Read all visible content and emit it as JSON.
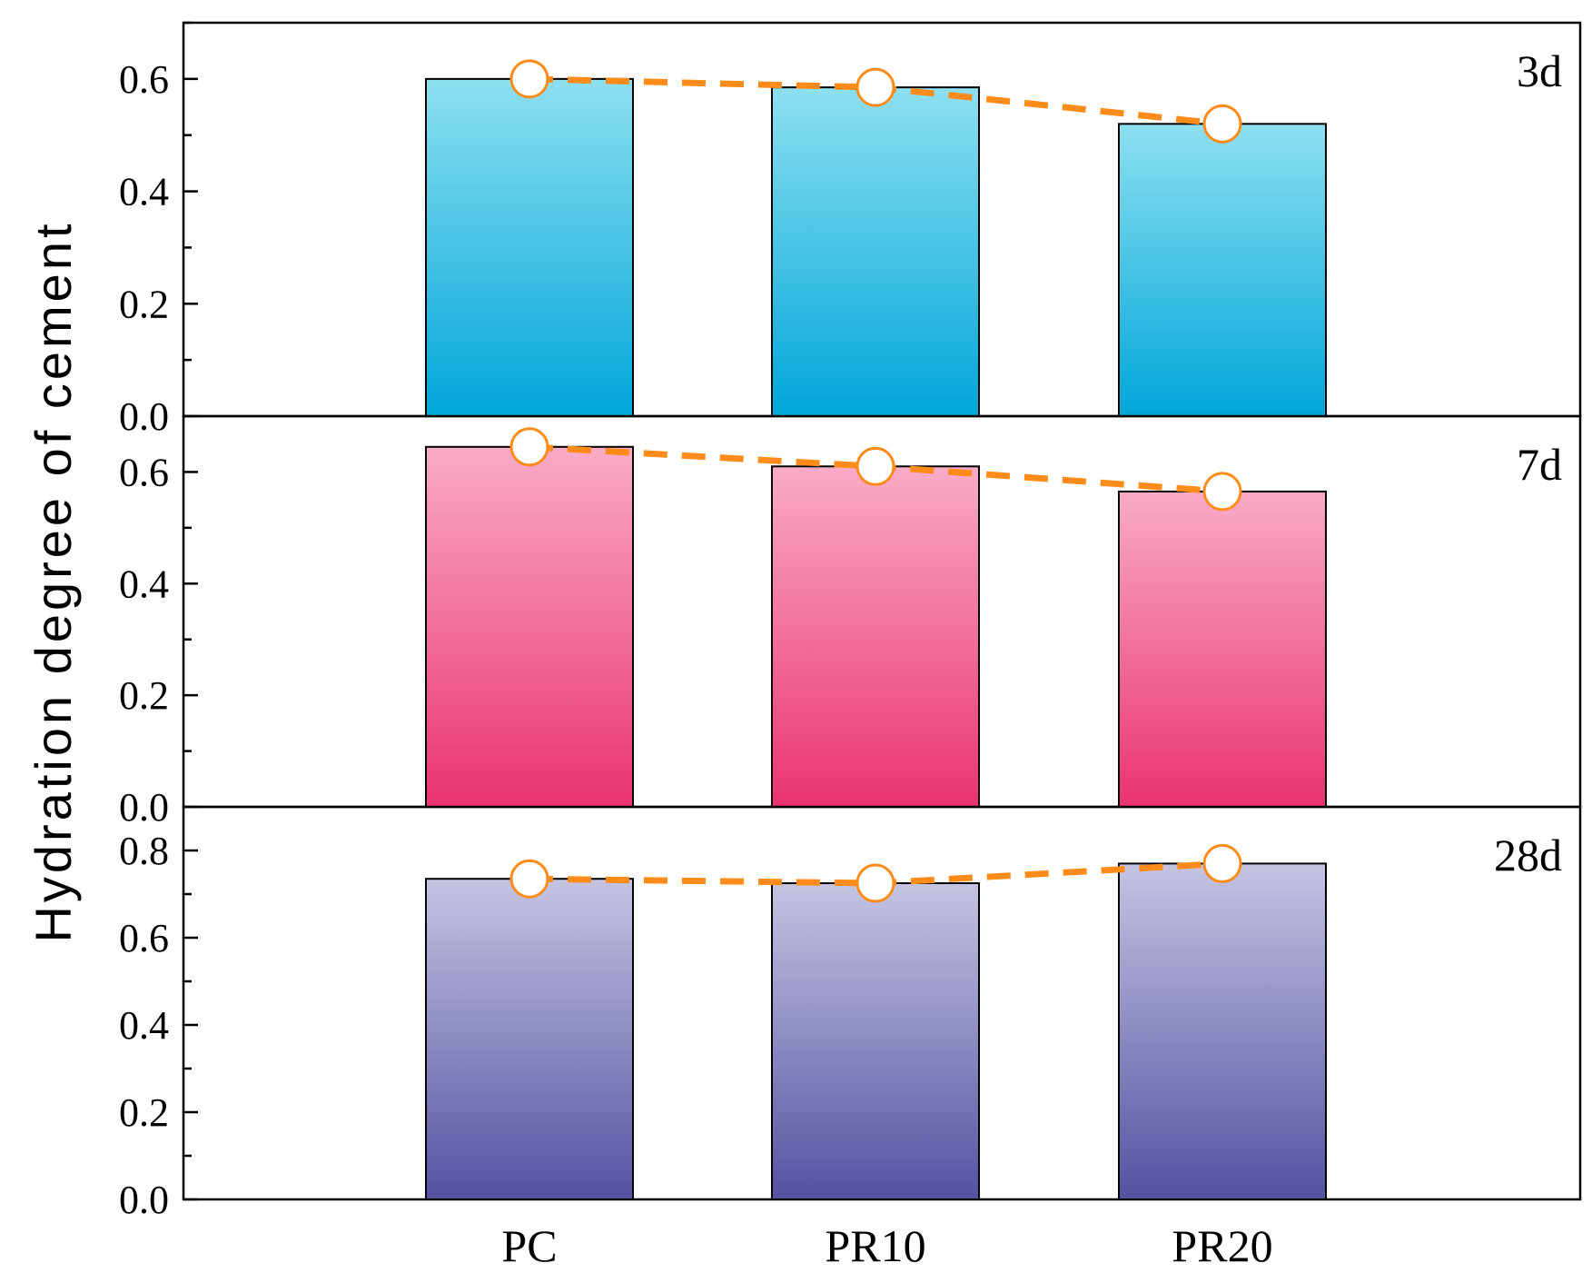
{
  "chart_data": {
    "type": "bar",
    "ylabel": "Hydration degree of cement",
    "categories": [
      "PC",
      "PR10",
      "PR20"
    ],
    "panels": [
      {
        "label": "3d",
        "values": [
          0.6,
          0.585,
          0.52
        ],
        "ylim": [
          0,
          0.7
        ],
        "yticks": [
          0.0,
          0.2,
          0.4,
          0.6
        ],
        "ytick_labels": [
          "0.0",
          "0.2",
          "0.4",
          "0.6"
        ],
        "color_top": "#8ee0f0",
        "color_bottom": "#00a6d9"
      },
      {
        "label": "7d",
        "values": [
          0.645,
          0.61,
          0.565
        ],
        "ylim": [
          0,
          0.7
        ],
        "yticks": [
          0.0,
          0.2,
          0.4,
          0.6
        ],
        "ytick_labels": [
          "0.0",
          "0.2",
          "0.4",
          "0.6"
        ],
        "color_top": "#f9abc8",
        "color_bottom": "#ea3272"
      },
      {
        "label": "28d",
        "values": [
          0.735,
          0.725,
          0.77
        ],
        "ylim": [
          0,
          0.9
        ],
        "yticks": [
          0.0,
          0.2,
          0.4,
          0.6,
          0.8
        ],
        "ytick_labels": [
          "0.0",
          "0.2",
          "0.4",
          "0.6",
          "0.8"
        ],
        "color_top": "#c5c4e2",
        "color_bottom": "#5452a1"
      }
    ],
    "trend_line_color": "#ff8c1a",
    "marker_fill": "#ffffff",
    "marker_edge": "#ff8c1a"
  }
}
